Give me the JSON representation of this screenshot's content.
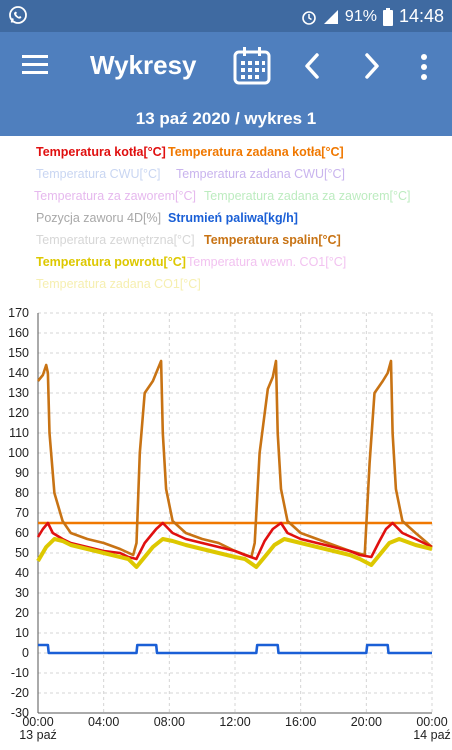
{
  "status_bar": {
    "battery": "91%",
    "time": "14:48",
    "icons": [
      "whatsapp-icon",
      "alarm-icon",
      "signal-icon",
      "battery-icon"
    ]
  },
  "toolbar": {
    "title": "Wykresy",
    "icons": [
      "menu-icon",
      "calendar-icon",
      "chevron-left-icon",
      "chevron-right-icon",
      "more-vert-icon"
    ]
  },
  "date_bar": {
    "label": "13 paź 2020 / wykres 1"
  },
  "colors": {
    "header_dark": "#3f6aa1",
    "header": "#4f7fbe"
  },
  "chart_data": {
    "type": "line",
    "legend": [
      {
        "name": "Temperatura kotła[°C]",
        "color": "#e01010",
        "active": true
      },
      {
        "name": "Temperatura zadana kotła[°C]",
        "color": "#f07800",
        "active": true
      },
      {
        "name": "Temperatura CWU[°C]",
        "color": "#c9d6f2",
        "active": false
      },
      {
        "name": "Temperatura zadana CWU[°C]",
        "color": "#c9b4ee",
        "active": false
      },
      {
        "name": "Temperatura za zaworem[°C]",
        "color": "#e6b9ee",
        "active": false
      },
      {
        "name": "Temperatura zadana za zaworem[°C]",
        "color": "#bdecc0",
        "active": false
      },
      {
        "name": "Pozycja zaworu 4D[%]",
        "color": "#a8a8a8",
        "active": false
      },
      {
        "name": "Strumień paliwa[kg/h]",
        "color": "#1a5fd6",
        "active": true
      },
      {
        "name": "Temperatura zewnętrzna[°C]",
        "color": "#d6d6d6",
        "active": false
      },
      {
        "name": "Temperatura spalin[°C]",
        "color": "#c87314",
        "active": true
      },
      {
        "name": "Temperatura powrotu[°C]",
        "color": "#ddc800",
        "active": true
      },
      {
        "name": "Temperatura wewn. CO1[°C]",
        "color": "#f2c2f0",
        "active": false
      },
      {
        "name": "Temperatura zadana CO1[°C]",
        "color": "#f6efb0",
        "active": false
      }
    ],
    "x_ticks": [
      {
        "h": 0,
        "label": "00:00",
        "sub": "13 paź"
      },
      {
        "h": 4,
        "label": "04:00",
        "sub": ""
      },
      {
        "h": 8,
        "label": "08:00",
        "sub": ""
      },
      {
        "h": 12,
        "label": "12:00",
        "sub": ""
      },
      {
        "h": 16,
        "label": "16:00",
        "sub": ""
      },
      {
        "h": 20,
        "label": "20:00",
        "sub": ""
      },
      {
        "h": 24,
        "label": "00:00",
        "sub": "14 paź"
      }
    ],
    "xlim": [
      0,
      24
    ],
    "ylim": [
      -30,
      170
    ],
    "y_ticks": [
      170,
      160,
      150,
      140,
      130,
      120,
      110,
      100,
      90,
      80,
      70,
      60,
      50,
      40,
      30,
      20,
      10,
      0,
      -10,
      -20,
      -30
    ],
    "grid": true,
    "series": [
      {
        "name": "Temperatura zadana kotła[°C]",
        "color": "#f07800",
        "x": [
          0,
          24
        ],
        "y": [
          65,
          65
        ]
      },
      {
        "name": "Temperatura spalin[°C]",
        "color": "#c87314",
        "x": [
          0,
          0.3,
          0.5,
          0.6,
          0.7,
          1.0,
          1.5,
          2,
          3,
          4,
          5,
          5.8,
          6.0,
          6.2,
          6.5,
          7.0,
          7.3,
          7.5,
          7.6,
          7.8,
          8.2,
          9,
          10,
          11,
          12,
          13.0,
          13.2,
          13.5,
          14,
          14.3,
          14.5,
          14.6,
          14.8,
          15.2,
          16,
          17,
          18,
          19,
          19.9,
          20.2,
          20.5,
          21.0,
          21.3,
          21.5,
          21.6,
          21.8,
          22.2,
          23,
          24
        ],
        "y": [
          136,
          139,
          144,
          140,
          110,
          80,
          66,
          60,
          57,
          55,
          52,
          49,
          55,
          100,
          130,
          136,
          142,
          146,
          110,
          82,
          66,
          60,
          57,
          55,
          51,
          48,
          55,
          100,
          132,
          138,
          146,
          110,
          82,
          66,
          60,
          57,
          54,
          51,
          49,
          95,
          130,
          136,
          140,
          146,
          110,
          82,
          66,
          60,
          53
        ]
      },
      {
        "name": "Temperatura kotła[°C]",
        "color": "#e01010",
        "x": [
          0,
          0.3,
          0.6,
          0.9,
          1.5,
          2,
          3,
          4,
          5,
          5.5,
          6.0,
          6.5,
          7.2,
          7.6,
          8.2,
          9,
          10,
          11,
          12,
          12.6,
          13.3,
          13.8,
          14.3,
          14.8,
          15.2,
          16,
          17,
          18,
          19,
          19.6,
          20.3,
          20.8,
          21.2,
          21.6,
          22.2,
          23,
          24
        ],
        "y": [
          58,
          62,
          65,
          60,
          57,
          55,
          53,
          51,
          50,
          48,
          47,
          55,
          62,
          65,
          60,
          57,
          55,
          53,
          51,
          49,
          47,
          56,
          62,
          65,
          60,
          57,
          55,
          53,
          51,
          49,
          48,
          56,
          62,
          65,
          60,
          57,
          53
        ]
      },
      {
        "name": "Temperatura powrotu[°C]",
        "color": "#ddc800",
        "x": [
          0,
          0.5,
          1.0,
          1.5,
          2,
          3,
          4,
          5,
          5.5,
          6.0,
          6.5,
          7.0,
          7.6,
          8.2,
          9,
          10,
          11,
          12,
          12.6,
          13.3,
          13.8,
          14.4,
          15.0,
          16,
          17,
          18,
          19,
          19.6,
          20.3,
          20.8,
          21.4,
          22.0,
          23,
          24
        ],
        "y": [
          46,
          53,
          57,
          56,
          54,
          52,
          50,
          48,
          47,
          43,
          48,
          53,
          57,
          56,
          54,
          52,
          50,
          48,
          47,
          43,
          48,
          54,
          57,
          55,
          53,
          51,
          49,
          47,
          44,
          49,
          55,
          57,
          54,
          52
        ]
      },
      {
        "name": "Strumień paliwa[kg/h]",
        "color": "#1a5fd6",
        "x": [
          0,
          0.6,
          0.65,
          6.0,
          6.05,
          7.2,
          7.25,
          13.3,
          13.35,
          14.6,
          14.65,
          20.0,
          20.05,
          21.3,
          21.35,
          24
        ],
        "y": [
          4,
          4,
          0,
          0,
          4,
          4,
          0,
          0,
          4,
          4,
          0,
          0,
          4,
          4,
          0,
          0
        ]
      }
    ]
  }
}
